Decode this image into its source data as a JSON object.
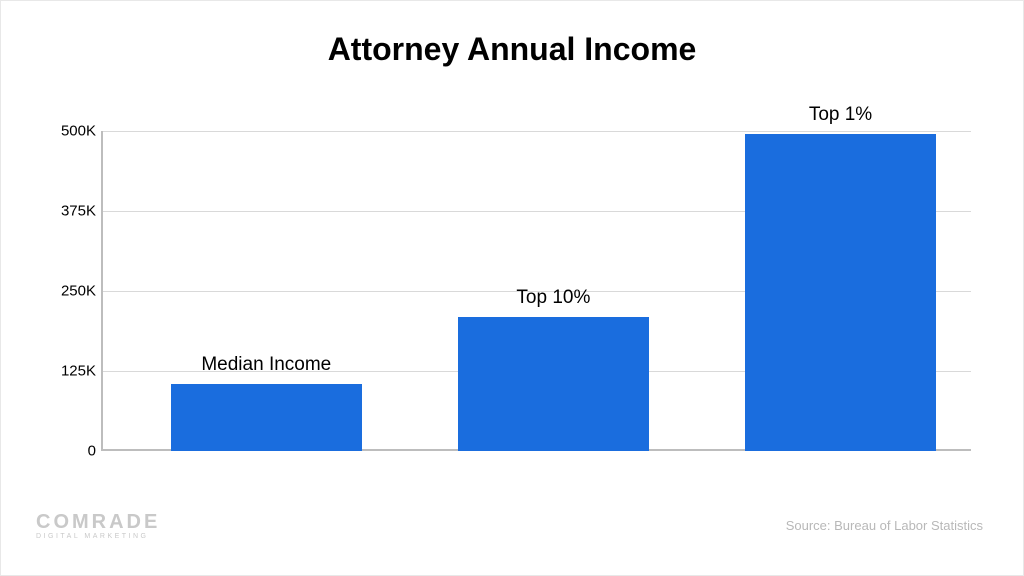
{
  "title": "Attorney Annual Income",
  "title_fontsize": 32,
  "chart": {
    "type": "bar",
    "ylim": [
      0,
      500
    ],
    "ytick_step": 125,
    "yticks": [
      {
        "value": 0,
        "label": "0"
      },
      {
        "value": 125,
        "label": "125K"
      },
      {
        "value": 250,
        "label": "250K"
      },
      {
        "value": 375,
        "label": "375K"
      },
      {
        "value": 500,
        "label": "500K"
      }
    ],
    "ytick_fontsize": 15,
    "grid_color": "#d9d9d9",
    "axis_color": "#bdbdbd",
    "background_color": "#ffffff",
    "bar_color": "#1a6dde",
    "bar_width_pct": 22,
    "bar_label_fontsize": 19,
    "bars": [
      {
        "label": "Median Income",
        "value": 105,
        "x_center_pct": 19
      },
      {
        "label": "Top 10%",
        "value": 210,
        "x_center_pct": 52
      },
      {
        "label": "Top 1%",
        "value": 495,
        "x_center_pct": 85
      }
    ]
  },
  "logo": {
    "main": "COMRADE",
    "sub": "DIGITAL MARKETING",
    "color": "#c9c9c9"
  },
  "source": {
    "text": "Source: Bureau of Labor Statistics",
    "fontsize": 13,
    "color": "#b8b8b8"
  }
}
